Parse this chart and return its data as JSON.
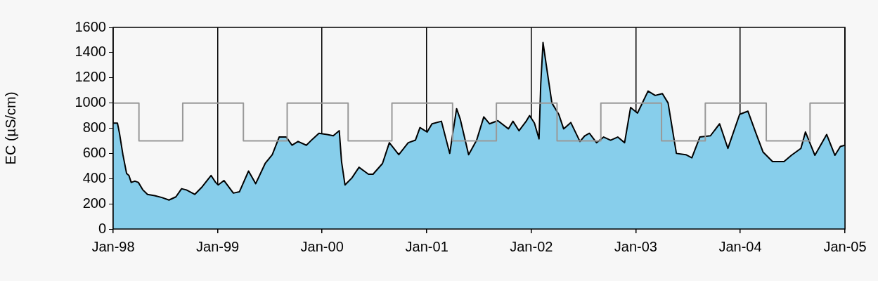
{
  "chart_data": {
    "type": "area",
    "ylabel": "EC (µS/cm)",
    "xlim": [
      "1998-01-01",
      "2005-01-01"
    ],
    "xticks": [
      {
        "value": "1998-01-01",
        "label": "Jan-98"
      },
      {
        "value": "1999-01-01",
        "label": "Jan-99"
      },
      {
        "value": "2000-01-01",
        "label": "Jan-00"
      },
      {
        "value": "2001-01-01",
        "label": "Jan-01"
      },
      {
        "value": "2002-01-01",
        "label": "Jan-02"
      },
      {
        "value": "2003-01-01",
        "label": "Jan-03"
      },
      {
        "value": "2004-01-01",
        "label": "Jan-04"
      },
      {
        "value": "2005-01-01",
        "label": "Jan-05"
      }
    ],
    "ylim": [
      0,
      1600
    ],
    "yticks": [
      0,
      200,
      400,
      600,
      800,
      1000,
      1200,
      1400,
      1600
    ],
    "grid": "x",
    "legend": false,
    "series": [
      {
        "color": "#87ceeb",
        "x": [
          "1998-01-01",
          "1998-01-16",
          "1998-01-23",
          "1998-02-04",
          "1998-02-17",
          "1998-02-25",
          "1998-03-05",
          "1998-03-18",
          "1998-03-30",
          "1998-04-15",
          "1998-05-01",
          "1998-05-26",
          "1998-06-20",
          "1998-07-15",
          "1998-08-08",
          "1998-08-28",
          "1998-09-14",
          "1998-10-13",
          "1998-11-06",
          "1998-12-09",
          "1998-12-25",
          "1999-01-03",
          "1999-01-23",
          "1999-02-25",
          "1999-03-18",
          "1999-04-19",
          "1999-05-14",
          "1999-06-16",
          "1999-07-11",
          "1999-08-04",
          "1999-08-29",
          "1999-09-18",
          "1999-10-09",
          "1999-11-07",
          "1999-11-27",
          "1999-12-21",
          "2000-01-19",
          "2000-02-09",
          "2000-03-01",
          "2000-03-09",
          "2000-03-21",
          "2000-04-14",
          "2000-05-09",
          "2000-06-11",
          "2000-06-27",
          "2000-07-30",
          "2000-08-23",
          "2000-09-25",
          "2000-10-28",
          "2000-11-22",
          "2000-12-08",
          "2001-01-02",
          "2001-01-19",
          "2001-02-21",
          "2001-03-22",
          "2001-04-15",
          "2001-04-28",
          "2001-05-27",
          "2001-06-24",
          "2001-07-19",
          "2001-08-08",
          "2001-09-06",
          "2001-10-13",
          "2001-10-29",
          "2001-11-19",
          "2001-12-14",
          "2001-12-26",
          "2002-01-12",
          "2002-01-28",
          "2002-02-03",
          "2002-02-11",
          "2002-02-25",
          "2002-03-14",
          "2002-04-07",
          "2002-04-24",
          "2002-05-19",
          "2002-06-20",
          "2002-07-07",
          "2002-07-23",
          "2002-08-17",
          "2002-09-11",
          "2002-10-05",
          "2002-10-30",
          "2002-11-23",
          "2002-12-14",
          "2003-01-07",
          "2003-02-13",
          "2003-03-10",
          "2003-04-04",
          "2003-04-24",
          "2003-05-23",
          "2003-06-25",
          "2003-07-16",
          "2003-08-13",
          "2003-09-19",
          "2003-10-21",
          "2003-11-19",
          "2003-12-30",
          "2004-01-28",
          "2004-02-25",
          "2004-03-21",
          "2004-04-23",
          "2004-06-02",
          "2004-06-28",
          "2004-07-31",
          "2004-08-16",
          "2004-09-18",
          "2004-10-29",
          "2004-11-27",
          "2004-12-16",
          "2005-01-01"
        ],
        "values": [
          840,
          840,
          760,
          590,
          440,
          425,
          370,
          380,
          370,
          310,
          275,
          265,
          250,
          230,
          255,
          320,
          310,
          275,
          330,
          425,
          370,
          350,
          385,
          285,
          295,
          460,
          360,
          520,
          590,
          730,
          730,
          665,
          695,
          665,
          710,
          760,
          750,
          740,
          780,
          535,
          350,
          405,
          490,
          435,
          435,
          520,
          685,
          590,
          685,
          705,
          805,
          770,
          835,
          855,
          600,
          955,
          870,
          590,
          705,
          890,
          835,
          860,
          795,
          855,
          780,
          855,
          900,
          840,
          715,
          1150,
          1480,
          1260,
          1000,
          910,
          795,
          845,
          695,
          740,
          760,
          685,
          730,
          705,
          730,
          685,
          965,
          920,
          1095,
          1060,
          1075,
          1000,
          600,
          590,
          565,
          730,
          740,
          835,
          640,
          910,
          935,
          760,
          610,
          535,
          535,
          585,
          640,
          770,
          585,
          750,
          585,
          655,
          665
        ]
      },
      {
        "type": "step",
        "color": "#999999",
        "x": [
          "1998-01-01",
          "1998-04-01",
          "1998-09-01",
          "1999-04-01",
          "1999-09-01",
          "2000-04-01",
          "2000-09-01",
          "2001-04-01",
          "2001-09-01",
          "2002-04-01",
          "2002-09-01",
          "2003-04-01",
          "2003-09-01",
          "2004-04-01",
          "2004-09-01",
          "2005-01-01"
        ],
        "values": [
          1000,
          700,
          1000,
          700,
          1000,
          700,
          1000,
          700,
          1000,
          700,
          1000,
          700,
          1000,
          700,
          1000,
          1000
        ]
      }
    ]
  }
}
